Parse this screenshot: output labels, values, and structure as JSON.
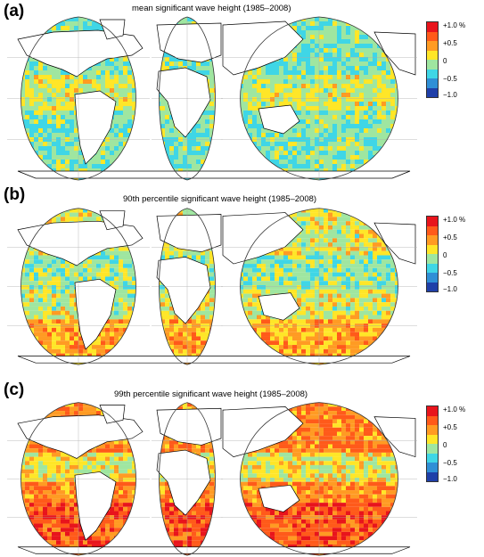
{
  "panels": [
    {
      "label": "(a)",
      "title": "mean significant wave height (1985–2008)",
      "intensity": 0
    },
    {
      "label": "(b)",
      "title": "90th percentile significant wave height (1985–2008)",
      "intensity": 1
    },
    {
      "label": "(c)",
      "title": "99th percentile significant wave height (1985–2008)",
      "intensity": 2
    }
  ],
  "colorbar": {
    "ticks": [
      "+1.0 %",
      "+0.5",
      "0",
      "−0.5",
      "−1.0"
    ],
    "colors": [
      "#e8141c",
      "#ff5a1a",
      "#ff9b23",
      "#ffe628",
      "#9fe6a0",
      "#3fd6e6",
      "#2f8fd6",
      "#1f3fa8"
    ]
  }
}
